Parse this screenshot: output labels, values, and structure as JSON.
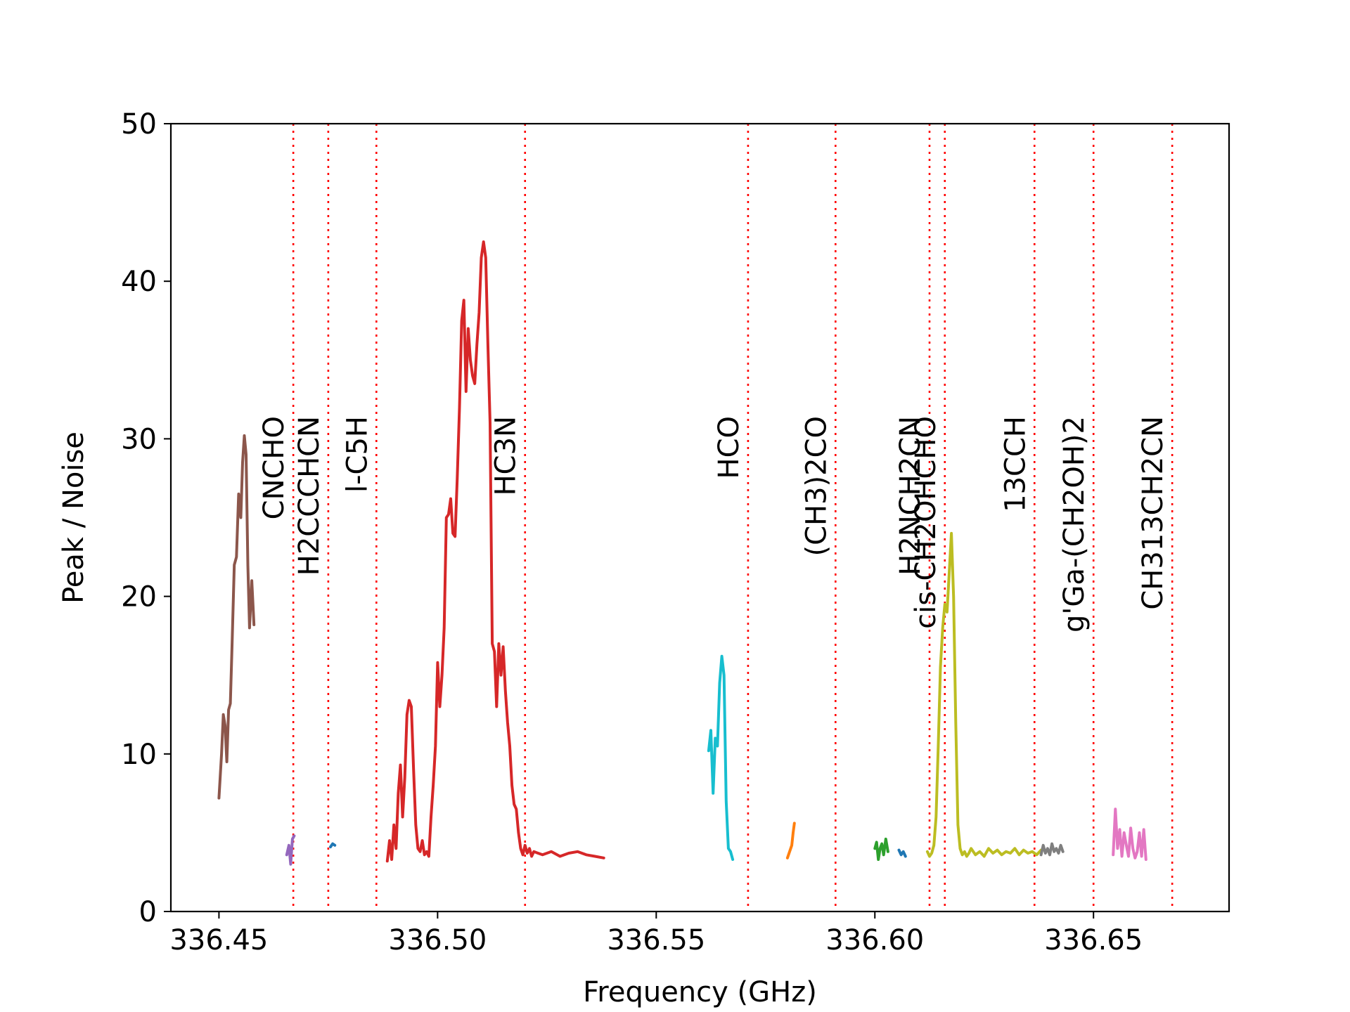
{
  "chart_data": {
    "type": "line",
    "title": "",
    "xlabel": "Frequency (GHz)",
    "ylabel": "Peak / Noise",
    "xlim": [
      336.439,
      336.681
    ],
    "ylim": [
      0,
      50
    ],
    "xticks": [
      336.45,
      336.5,
      336.55,
      336.6,
      336.65
    ],
    "xtick_labels": [
      "336.45",
      "336.50",
      "336.55",
      "336.60",
      "336.65"
    ],
    "yticks": [
      0,
      10,
      20,
      30,
      40,
      50
    ],
    "ytick_labels": [
      "0",
      "10",
      "20",
      "30",
      "40",
      "50"
    ],
    "grid": false,
    "legend": "none",
    "line_markers": [
      {
        "label": "CNCHO",
        "freq": 336.467,
        "color": "#ff0000"
      },
      {
        "label": "H2CCCHCN",
        "freq": 336.475,
        "color": "#ff0000"
      },
      {
        "label": "l-C5H",
        "freq": 336.486,
        "color": "#ff0000"
      },
      {
        "label": "HC3N",
        "freq": 336.52,
        "color": "#ff0000"
      },
      {
        "label": "HCO",
        "freq": 336.571,
        "color": "#ff0000"
      },
      {
        "label": "(CH3)2CO",
        "freq": 336.591,
        "color": "#ff0000"
      },
      {
        "label": "H2NCH2CN",
        "freq": 336.6125,
        "color": "#ff0000"
      },
      {
        "label": "cis-CH2OHCHO",
        "freq": 336.616,
        "color": "#ff0000"
      },
      {
        "label": "13CCH",
        "freq": 336.6365,
        "color": "#ff0000"
      },
      {
        "label": "g'Ga-(CH2OH)2",
        "freq": 336.65,
        "color": "#ff0000"
      },
      {
        "label": "CH313CH2CN",
        "freq": 336.668,
        "color": "#ff0000"
      }
    ],
    "series": [
      {
        "color": "#8c564b",
        "x": [
          336.45,
          336.4506,
          336.451,
          336.4514,
          336.4518,
          336.4522,
          336.4526,
          336.453,
          336.4535,
          336.454,
          336.4545,
          336.455,
          336.4554,
          336.4558,
          336.4562,
          336.4566,
          336.457,
          336.4575,
          336.458
        ],
        "y": [
          7.2,
          10.0,
          12.5,
          11.8,
          9.5,
          12.8,
          13.2,
          17.0,
          22.0,
          22.5,
          26.5,
          25.0,
          28.5,
          30.2,
          29.0,
          22.0,
          18.0,
          21.0,
          18.2
        ]
      },
      {
        "color": "#9467bd",
        "x": [
          336.4655,
          336.466,
          336.4664,
          336.4668,
          336.4672
        ],
        "y": [
          3.6,
          4.2,
          3.0,
          4.6,
          4.8
        ]
      },
      {
        "color": "#1f77b4",
        "x": [
          336.4755,
          336.476,
          336.4765
        ],
        "y": [
          4.1,
          4.3,
          4.2
        ]
      },
      {
        "color": "#d62728",
        "x": [
          336.4885,
          336.489,
          336.4895,
          336.49,
          336.4905,
          336.491,
          336.4915,
          336.492,
          336.4925,
          336.493,
          336.4935,
          336.494,
          336.4945,
          336.495,
          336.4955,
          336.496,
          336.4965,
          336.497,
          336.4975,
          336.498,
          336.4985,
          336.499,
          336.4995,
          336.5,
          336.5005,
          336.501,
          336.5015,
          336.502,
          336.5025,
          336.503,
          336.5035,
          336.504,
          336.5045,
          336.505,
          336.5055,
          336.506,
          336.5065,
          336.507,
          336.5075,
          336.508,
          336.5085,
          336.509,
          336.5095,
          336.51,
          336.5105,
          336.511,
          336.5115,
          336.512,
          336.5125,
          336.513,
          336.5135,
          336.514,
          336.5145,
          336.515,
          336.5155,
          336.516,
          336.5165,
          336.517,
          336.5175,
          336.518,
          336.5185,
          336.519,
          336.5195,
          336.52,
          336.5205,
          336.521,
          336.5215,
          336.522,
          336.524,
          336.526,
          336.528,
          336.53,
          336.532,
          336.534,
          336.536,
          336.538
        ],
        "y": [
          3.2,
          4.5,
          3.3,
          5.5,
          4.0,
          7.5,
          9.3,
          6.0,
          8.5,
          12.5,
          13.4,
          13.0,
          9.0,
          5.5,
          4.0,
          3.8,
          4.5,
          3.6,
          3.8,
          3.5,
          6.0,
          8.0,
          10.5,
          15.8,
          13.0,
          15.0,
          18.0,
          25.0,
          25.2,
          26.2,
          24.0,
          23.8,
          27.5,
          32.0,
          37.5,
          38.8,
          33.0,
          37.0,
          35.0,
          34.0,
          33.5,
          36.0,
          38.0,
          41.5,
          42.5,
          41.5,
          36.0,
          31.0,
          17.0,
          16.5,
          13.0,
          17.0,
          15.0,
          16.8,
          14.0,
          12.0,
          10.5,
          8.0,
          6.8,
          6.5,
          5.0,
          4.0,
          3.6,
          4.2,
          3.7,
          4.0,
          3.5,
          3.8,
          3.6,
          3.8,
          3.5,
          3.7,
          3.8,
          3.6,
          3.5,
          3.4
        ]
      },
      {
        "color": "#17becf",
        "x": [
          336.562,
          336.5625,
          336.563,
          336.5635,
          336.564,
          336.5645,
          336.565,
          336.5655,
          336.566,
          336.5665,
          336.567,
          336.5675
        ],
        "y": [
          10.2,
          11.5,
          7.5,
          11.0,
          10.5,
          14.5,
          16.2,
          15.0,
          7.0,
          4.0,
          3.8,
          3.3
        ]
      },
      {
        "color": "#ff7f0e",
        "x": [
          336.58,
          336.5805,
          336.581,
          336.5813,
          336.5816
        ],
        "y": [
          3.4,
          3.8,
          4.2,
          5.0,
          5.6
        ]
      },
      {
        "color": "#2ca02c",
        "x": [
          336.6,
          336.6004,
          336.6008,
          336.6012,
          336.6016,
          336.602,
          336.6025,
          336.603
        ],
        "y": [
          4.0,
          4.4,
          3.3,
          4.0,
          4.3,
          3.6,
          4.6,
          3.8
        ]
      },
      {
        "color": "#1f77b4",
        "x": [
          336.6055,
          336.606,
          336.6065,
          336.607
        ],
        "y": [
          3.9,
          3.6,
          3.8,
          3.5
        ]
      },
      {
        "color": "#bcbd22",
        "x": [
          336.612,
          336.6125,
          336.613,
          336.6135,
          336.614,
          336.6145,
          336.615,
          336.6155,
          336.616,
          336.6165,
          336.617,
          336.6175,
          336.618,
          336.6185,
          336.619,
          336.6195,
          336.62,
          336.6205,
          336.621,
          336.6215,
          336.622,
          336.623,
          336.624,
          336.625,
          336.626,
          336.627,
          336.628,
          336.629,
          336.63,
          336.631,
          336.632,
          336.633,
          336.634,
          336.635,
          336.636,
          336.637,
          336.638
        ],
        "y": [
          3.8,
          3.5,
          3.7,
          4.2,
          6.0,
          10.5,
          15.5,
          18.0,
          19.5,
          19.0,
          21.5,
          24.0,
          20.0,
          12.0,
          5.5,
          4.0,
          3.6,
          3.8,
          3.5,
          3.7,
          4.0,
          3.6,
          3.8,
          3.5,
          4.0,
          3.7,
          3.9,
          3.6,
          3.8,
          3.7,
          4.0,
          3.6,
          3.9,
          3.7,
          3.8,
          3.6,
          3.9
        ]
      },
      {
        "color": "#7f7f7f",
        "x": [
          336.638,
          336.6385,
          336.639,
          336.6395,
          336.64,
          336.6405,
          336.641,
          336.6415,
          336.642,
          336.6425,
          336.643
        ],
        "y": [
          3.6,
          4.2,
          3.7,
          4.0,
          3.6,
          4.3,
          3.8,
          4.0,
          3.7,
          4.2,
          3.8
        ]
      },
      {
        "color": "#e377c2",
        "x": [
          336.6545,
          336.655,
          336.6555,
          336.656,
          336.6565,
          336.657,
          336.6575,
          336.658,
          336.6585,
          336.659,
          336.6595,
          336.66,
          336.6605,
          336.661,
          336.6615,
          336.662
        ],
        "y": [
          3.6,
          6.5,
          4.0,
          5.2,
          3.5,
          5.0,
          4.2,
          3.5,
          5.3,
          4.0,
          3.4,
          3.8,
          5.0,
          3.5,
          5.2,
          3.3
        ]
      }
    ]
  }
}
